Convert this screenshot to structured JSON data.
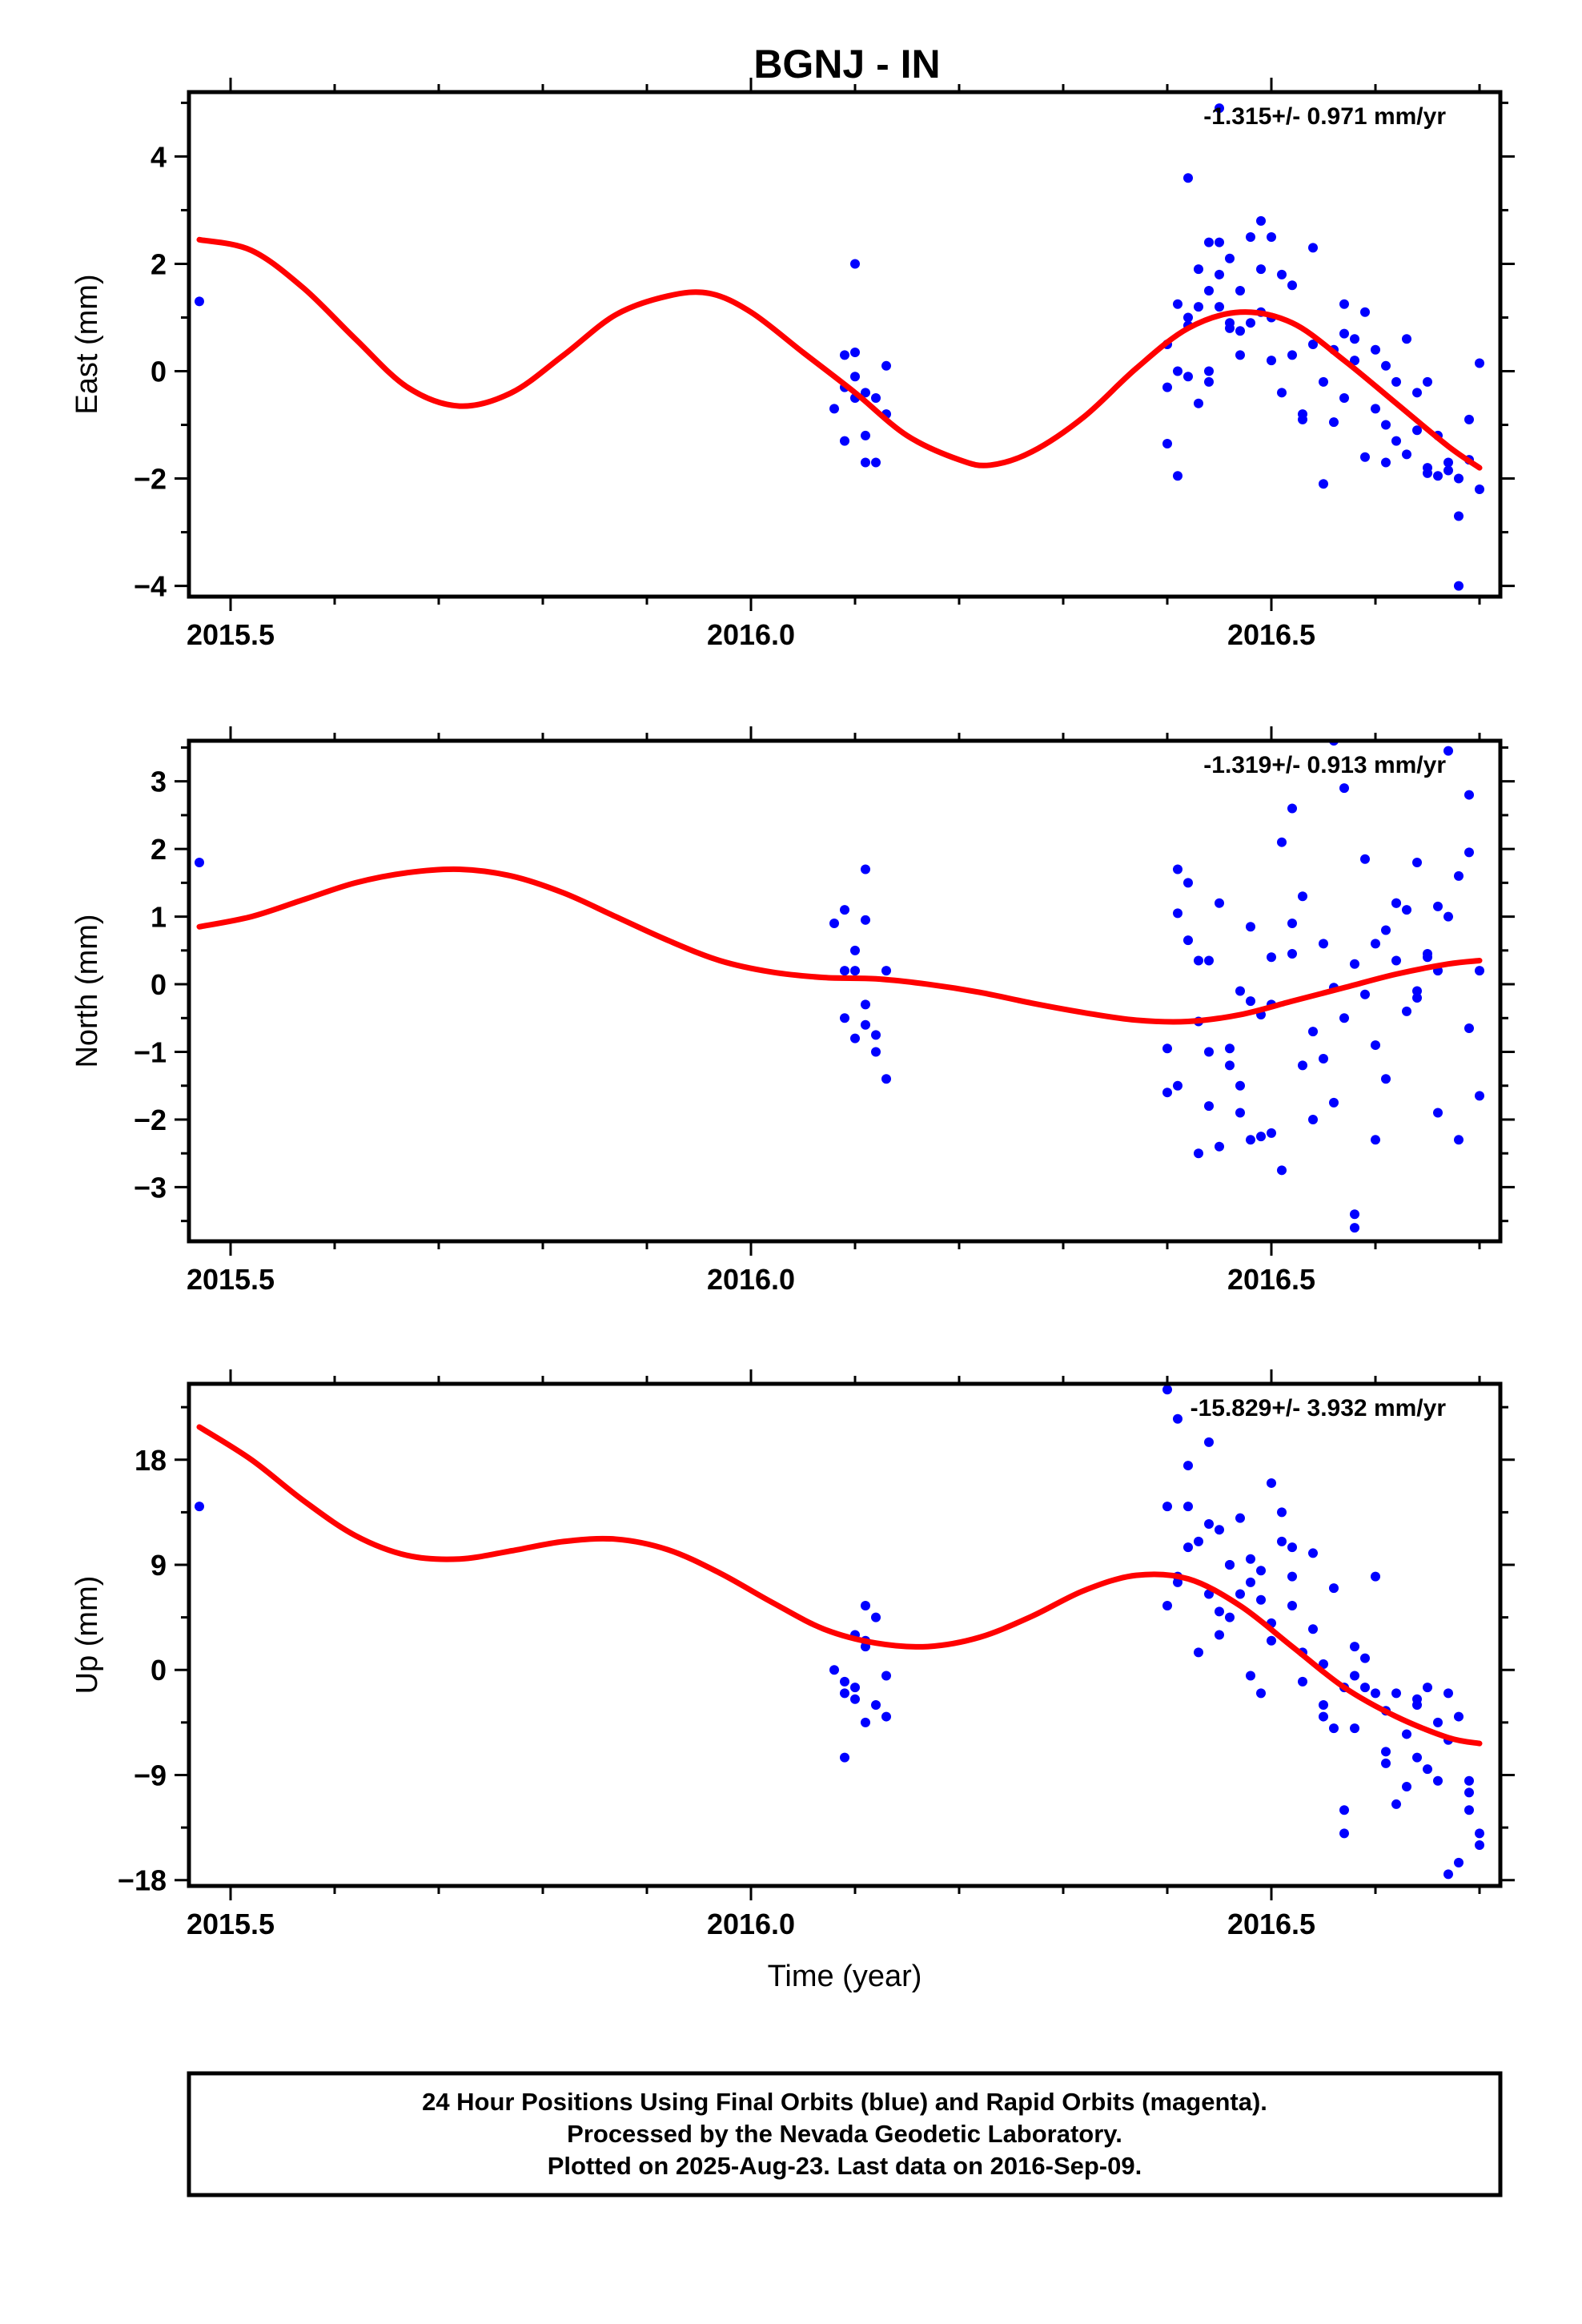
{
  "title": "BGNJ - IN",
  "caption": [
    "24 Hour Positions Using Final Orbits (blue) and Rapid Orbits (magenta).",
    "Processed by the Nevada Geodetic Laboratory.",
    "Plotted on 2025-Aug-23. Last data on 2016-Sep-09."
  ],
  "colors": {
    "points": "#0000ff",
    "fit": "#ff0000",
    "frame": "#000000"
  },
  "chart_data": [
    {
      "type": "scatter",
      "ylabel": "East (mm)",
      "xlabel": "",
      "rate_label": "-1.315+/- 0.971 mm/yr",
      "xlim": [
        2015.46,
        2016.72
      ],
      "ylim": [
        -4.2,
        5.2
      ],
      "xticks": [
        2015.5,
        2016.0,
        2016.5
      ],
      "xtick_labels": [
        "2015.5",
        "2016.0",
        "2016.5"
      ],
      "yticks": [
        -4,
        -2,
        0,
        2,
        4
      ],
      "ytick_labels": [
        "−4",
        "−2",
        "0",
        "2",
        "4"
      ],
      "grid": false,
      "series": [
        {
          "kind": "points",
          "x": [
            2015.47,
            2016.08,
            2016.09,
            2016.09,
            2016.1,
            2016.1,
            2016.1,
            2016.11,
            2016.11,
            2016.11,
            2016.12,
            2016.12,
            2016.13,
            2016.13,
            2016.09,
            2016.1,
            2016.4,
            2016.4,
            2016.4,
            2016.41,
            2016.41,
            2016.42,
            2016.42,
            2016.42,
            2016.43,
            2016.43,
            2016.44,
            2016.44,
            2016.44,
            2016.45,
            2016.45,
            2016.45,
            2016.46,
            2016.46,
            2016.47,
            2016.47,
            2016.48,
            2016.48,
            2016.49,
            2016.49,
            2016.5,
            2016.5,
            2016.51,
            2016.51,
            2016.52,
            2016.52,
            2016.53,
            2016.54,
            2016.54,
            2016.55,
            2016.55,
            2016.56,
            2016.56,
            2016.57,
            2016.57,
            2016.58,
            2016.58,
            2016.59,
            2016.59,
            2016.6,
            2016.6,
            2016.61,
            2016.61,
            2016.62,
            2016.62,
            2016.63,
            2016.63,
            2016.64,
            2016.64,
            2016.65,
            2016.65,
            2016.66,
            2016.66,
            2016.67,
            2016.67,
            2016.68,
            2016.68,
            2016.69,
            2016.69,
            2016.7,
            2016.7,
            2016.41,
            2016.43,
            2016.46,
            2016.49,
            2016.53,
            2016.57,
            2016.61,
            2016.65,
            2016.68,
            2016.42,
            2016.44,
            2016.47,
            2016.5,
            2016.45
          ],
          "y": [
            1.3,
            -0.7,
            0.3,
            -0.3,
            2.0,
            0.35,
            -0.1,
            -0.4,
            -1.2,
            -1.7,
            -0.5,
            -1.7,
            0.1,
            -0.8,
            -1.3,
            -0.5,
            -1.35,
            -0.3,
            0.5,
            1.25,
            -1.95,
            0.85,
            3.6,
            -0.1,
            1.2,
            1.9,
            2.4,
            0.0,
            -0.2,
            1.8,
            4.9,
            2.4,
            0.9,
            2.1,
            1.5,
            0.75,
            2.5,
            0.9,
            2.8,
            1.1,
            2.5,
            0.2,
            1.8,
            -0.4,
            0.3,
            1.6,
            -0.8,
            0.5,
            2.3,
            -0.2,
            -2.1,
            0.4,
            -0.95,
            0.7,
            -0.5,
            0.2,
            0.6,
            1.1,
            -1.6,
            0.4,
            -0.7,
            -1.0,
            0.1,
            -0.2,
            -1.3,
            -1.55,
            0.6,
            -1.1,
            -0.4,
            -1.8,
            -1.9,
            -1.2,
            -1.95,
            -1.85,
            -1.7,
            -2.7,
            -4.0,
            -1.65,
            -0.9,
            -2.2,
            0.15,
            0.0,
            -0.6,
            0.8,
            1.9,
            -0.9,
            1.25,
            -1.7,
            -0.2,
            -2.0,
            1.0,
            1.5,
            0.3,
            1.0,
            1.2
          ]
        },
        {
          "kind": "fit",
          "x": [
            2015.47,
            2015.52,
            2015.57,
            2015.62,
            2015.67,
            2015.72,
            2015.77,
            2015.82,
            2015.87,
            2015.92,
            2015.96,
            2016.0,
            2016.05,
            2016.1,
            2016.15,
            2016.2,
            2016.23,
            2016.27,
            2016.32,
            2016.37,
            2016.42,
            2016.47,
            2016.52,
            2016.57,
            2016.62,
            2016.67,
            2016.7
          ],
          "y": [
            2.45,
            2.25,
            1.55,
            0.6,
            -0.3,
            -0.65,
            -0.4,
            0.3,
            1.05,
            1.4,
            1.45,
            1.1,
            0.35,
            -0.4,
            -1.2,
            -1.65,
            -1.75,
            -1.5,
            -0.85,
            0.05,
            0.8,
            1.1,
            0.9,
            0.2,
            -0.6,
            -1.4,
            -1.8
          ]
        }
      ]
    },
    {
      "type": "scatter",
      "ylabel": "North (mm)",
      "xlabel": "",
      "rate_label": "-1.319+/- 0.913 mm/yr",
      "xlim": [
        2015.46,
        2016.72
      ],
      "ylim": [
        -3.8,
        3.6
      ],
      "xticks": [
        2015.5,
        2016.0,
        2016.5
      ],
      "xtick_labels": [
        "2015.5",
        "2016.0",
        "2016.5"
      ],
      "yticks": [
        -3,
        -2,
        -1,
        0,
        1,
        2,
        3
      ],
      "ytick_labels": [
        "−3",
        "−2",
        "−1",
        "0",
        "1",
        "2",
        "3"
      ],
      "grid": false,
      "series": [
        {
          "kind": "points",
          "x": [
            2015.47,
            2016.08,
            2016.09,
            2016.09,
            2016.1,
            2016.1,
            2016.1,
            2016.11,
            2016.11,
            2016.11,
            2016.12,
            2016.12,
            2016.13,
            2016.13,
            2016.09,
            2016.11,
            2016.4,
            2016.4,
            2016.41,
            2016.41,
            2016.42,
            2016.42,
            2016.43,
            2016.43,
            2016.44,
            2016.44,
            2016.45,
            2016.45,
            2016.46,
            2016.46,
            2016.47,
            2016.47,
            2016.48,
            2016.48,
            2016.49,
            2016.49,
            2016.5,
            2016.5,
            2016.51,
            2016.51,
            2016.52,
            2016.52,
            2016.53,
            2016.54,
            2016.54,
            2016.55,
            2016.55,
            2016.56,
            2016.56,
            2016.57,
            2016.57,
            2016.58,
            2016.58,
            2016.59,
            2016.59,
            2016.6,
            2016.6,
            2016.61,
            2016.61,
            2016.62,
            2016.62,
            2016.63,
            2016.63,
            2016.64,
            2016.64,
            2016.65,
            2016.65,
            2016.66,
            2016.66,
            2016.67,
            2016.67,
            2016.68,
            2016.68,
            2016.69,
            2016.69,
            2016.7,
            2016.7,
            2016.41,
            2016.43,
            2016.47,
            2016.5,
            2016.53,
            2016.58,
            2016.62,
            2016.66,
            2016.69,
            2016.44,
            2016.48,
            2016.52,
            2016.56,
            2016.6,
            2016.64
          ],
          "y": [
            1.8,
            0.9,
            1.1,
            -0.5,
            0.5,
            0.2,
            -0.8,
            1.7,
            -0.6,
            0.95,
            -1.0,
            -0.75,
            0.2,
            -1.4,
            0.2,
            -0.3,
            -1.6,
            -0.95,
            1.7,
            -1.5,
            0.65,
            1.5,
            0.35,
            -2.5,
            -1.0,
            -1.8,
            1.2,
            -2.4,
            -0.95,
            -1.2,
            -1.9,
            -1.5,
            -2.3,
            0.85,
            -0.45,
            -2.25,
            0.4,
            -0.3,
            -2.75,
            2.1,
            2.6,
            0.45,
            1.3,
            -0.7,
            -2.0,
            0.6,
            -1.1,
            3.6,
            -0.05,
            -0.5,
            2.9,
            -3.6,
            0.3,
            -0.15,
            1.85,
            -2.3,
            -0.9,
            0.8,
            -1.4,
            0.35,
            1.2,
            1.1,
            -0.4,
            1.8,
            -0.1,
            0.4,
            0.45,
            0.2,
            -1.9,
            1.0,
            3.45,
            -2.3,
            1.6,
            2.8,
            1.95,
            0.2,
            -1.65,
            1.05,
            -0.55,
            -0.1,
            -2.2,
            -1.2,
            -3.4,
            1.2,
            1.15,
            -0.65,
            0.35,
            -0.25,
            0.9,
            -1.75,
            0.6,
            -0.2
          ],
          "_note": ""
        },
        {
          "kind": "fit",
          "x": [
            2015.47,
            2015.52,
            2015.57,
            2015.62,
            2015.67,
            2015.72,
            2015.77,
            2015.82,
            2015.87,
            2015.92,
            2015.97,
            2016.02,
            2016.07,
            2016.12,
            2016.17,
            2016.22,
            2016.27,
            2016.32,
            2016.37,
            2016.42,
            2016.47,
            2016.52,
            2016.57,
            2016.62,
            2016.67,
            2016.7
          ],
          "y": [
            0.85,
            1.0,
            1.25,
            1.5,
            1.65,
            1.7,
            1.6,
            1.35,
            1.0,
            0.65,
            0.35,
            0.18,
            0.1,
            0.08,
            0.0,
            -0.12,
            -0.28,
            -0.42,
            -0.53,
            -0.55,
            -0.45,
            -0.25,
            -0.05,
            0.15,
            0.3,
            0.35
          ]
        }
      ]
    },
    {
      "type": "scatter",
      "ylabel": "Up (mm)",
      "xlabel": "Time (year)",
      "rate_label": "-15.829+/- 3.932 mm/yr",
      "xlim": [
        2015.46,
        2016.72
      ],
      "ylim": [
        -18.5,
        24.5
      ],
      "xticks": [
        2015.5,
        2016.0,
        2016.5
      ],
      "xtick_labels": [
        "2015.5",
        "2016.0",
        "2016.5"
      ],
      "yticks": [
        -18,
        -9,
        0,
        9,
        18
      ],
      "ytick_labels": [
        "−18",
        "−9",
        "0",
        "9",
        "18"
      ],
      "grid": false,
      "series": [
        {
          "kind": "points",
          "x": [
            2015.47,
            2016.08,
            2016.09,
            2016.09,
            2016.1,
            2016.1,
            2016.1,
            2016.11,
            2016.11,
            2016.11,
            2016.12,
            2016.12,
            2016.13,
            2016.13,
            2016.09,
            2016.11,
            2016.4,
            2016.4,
            2016.41,
            2016.41,
            2016.42,
            2016.42,
            2016.43,
            2016.43,
            2016.44,
            2016.44,
            2016.45,
            2016.45,
            2016.46,
            2016.46,
            2016.47,
            2016.47,
            2016.48,
            2016.48,
            2016.49,
            2016.49,
            2016.5,
            2016.5,
            2016.51,
            2016.51,
            2016.52,
            2016.52,
            2016.53,
            2016.54,
            2016.54,
            2016.55,
            2016.55,
            2016.56,
            2016.56,
            2016.57,
            2016.57,
            2016.58,
            2016.58,
            2016.59,
            2016.59,
            2016.6,
            2016.6,
            2016.61,
            2016.61,
            2016.62,
            2016.62,
            2016.63,
            2016.63,
            2016.64,
            2016.64,
            2016.65,
            2016.65,
            2016.66,
            2016.66,
            2016.67,
            2016.67,
            2016.68,
            2016.68,
            2016.69,
            2016.69,
            2016.7,
            2016.7,
            2016.4,
            2016.42,
            2016.44,
            2016.46,
            2016.48,
            2016.5,
            2016.52,
            2016.55,
            2016.58,
            2016.61,
            2016.64,
            2016.67,
            2016.69,
            2016.41,
            2016.45,
            2016.49,
            2016.53,
            2016.57
          ],
          "y": [
            14.0,
            0.0,
            -7.5,
            -2.0,
            -1.5,
            3.0,
            -2.5,
            -4.5,
            2.0,
            5.5,
            -3.0,
            4.5,
            -0.5,
            -4.0,
            -1.0,
            2.5,
            24.0,
            14.0,
            8.0,
            21.5,
            17.5,
            14.0,
            11.0,
            1.5,
            19.5,
            6.5,
            12.0,
            5.0,
            9.0,
            4.5,
            13.0,
            6.5,
            9.5,
            -0.5,
            -2.0,
            6.0,
            16.0,
            4.0,
            11.0,
            13.5,
            10.5,
            5.5,
            -1.0,
            10.0,
            3.5,
            0.5,
            -4.0,
            7.0,
            -5.0,
            -14.0,
            -12.0,
            2.0,
            -0.5,
            1.0,
            -1.5,
            8.0,
            -2.0,
            -3.5,
            -8.0,
            -2.0,
            -11.5,
            -5.5,
            -10.0,
            -3.0,
            -7.5,
            -1.5,
            -8.5,
            -4.5,
            -9.5,
            -2.0,
            -17.5,
            -16.5,
            -4.0,
            -9.5,
            -12.0,
            -14.0,
            -15.0,
            5.5,
            10.5,
            12.5,
            9.0,
            7.5,
            2.5,
            8.0,
            -3.0,
            -5.0,
            -7.0,
            -2.5,
            -6.0,
            -10.5,
            7.5,
            3.0,
            8.5,
            1.5,
            -1.5
          ],
          "_note": ""
        },
        {
          "kind": "fit",
          "x": [
            2015.47,
            2015.52,
            2015.57,
            2015.62,
            2015.67,
            2015.72,
            2015.77,
            2015.82,
            2015.87,
            2015.92,
            2015.97,
            2016.02,
            2016.07,
            2016.12,
            2016.17,
            2016.22,
            2016.27,
            2016.32,
            2016.37,
            2016.42,
            2016.47,
            2016.52,
            2016.57,
            2016.62,
            2016.67,
            2016.7
          ],
          "y": [
            20.8,
            18.0,
            14.5,
            11.5,
            9.8,
            9.5,
            10.2,
            11.0,
            11.2,
            10.3,
            8.3,
            5.8,
            3.5,
            2.3,
            2.0,
            2.8,
            4.6,
            6.8,
            8.1,
            7.8,
            5.5,
            2.0,
            -1.5,
            -4.0,
            -5.8,
            -6.3
          ]
        }
      ]
    }
  ]
}
